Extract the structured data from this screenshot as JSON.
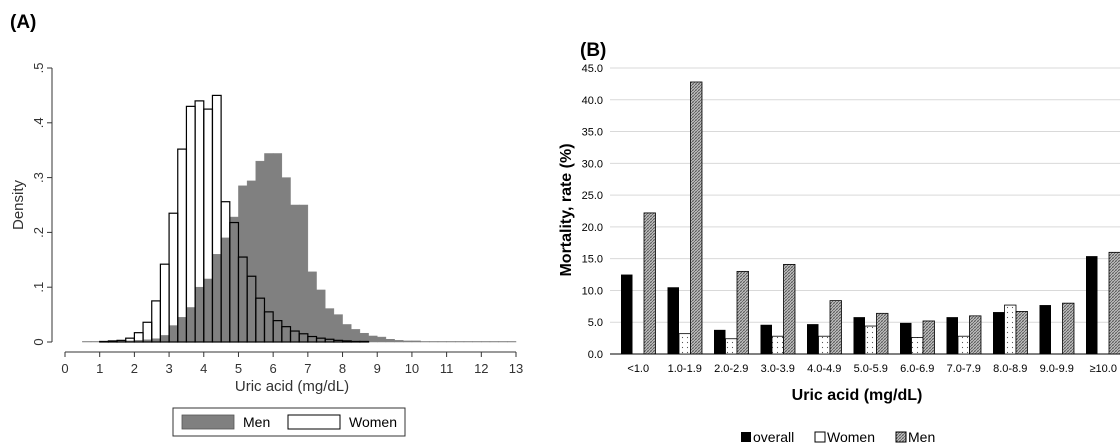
{
  "panelA": {
    "label": "(A)",
    "chart_data": {
      "type": "bar",
      "subtype": "overlaid-histogram",
      "xlabel": "Uric acid (mg/dL)",
      "ylabel": "Density",
      "xlim": [
        0,
        13
      ],
      "ylim": [
        0,
        0.5
      ],
      "xticks": [
        "0",
        "1",
        "2",
        "3",
        "4",
        "5",
        "6",
        "7",
        "8",
        "9",
        "10",
        "11",
        "12",
        "13"
      ],
      "yticks": [
        "0",
        ".1",
        ".2",
        ".3",
        ".4",
        ".5"
      ],
      "bin_width": 0.25,
      "legend": [
        "Men",
        "Women"
      ],
      "legend_position": "bottom",
      "colors": {
        "Men": "#808080",
        "Women": "#ffffff",
        "Women_edge": "#000000"
      },
      "series": [
        {
          "name": "Men",
          "x_start": [
            0.5,
            0.75,
            1.0,
            1.25,
            1.5,
            1.75,
            2.0,
            2.25,
            2.5,
            2.75,
            3.0,
            3.25,
            3.5,
            3.75,
            4.0,
            4.25,
            4.5,
            4.75,
            5.0,
            5.25,
            5.5,
            5.75,
            6.0,
            6.25,
            6.5,
            6.75,
            7.0,
            7.25,
            7.5,
            7.75,
            8.0,
            8.25,
            8.5,
            8.75,
            9.0,
            9.25,
            9.5,
            9.75,
            10.0,
            10.25,
            10.5,
            10.75,
            11.0,
            11.25,
            11.5,
            11.75,
            12.0,
            12.25,
            12.5,
            12.75
          ],
          "values": [
            0.001,
            0.001,
            0.001,
            0.001,
            0.002,
            0.002,
            0.003,
            0.004,
            0.006,
            0.012,
            0.03,
            0.045,
            0.063,
            0.1,
            0.115,
            0.16,
            0.19,
            0.228,
            0.285,
            0.294,
            0.33,
            0.344,
            0.344,
            0.3,
            0.25,
            0.25,
            0.128,
            0.095,
            0.061,
            0.05,
            0.032,
            0.023,
            0.016,
            0.011,
            0.009,
            0.005,
            0.003,
            0.002,
            0.002,
            0.001,
            0.001,
            0.001,
            0.001,
            0.001,
            0.001,
            0.001,
            0.001,
            0.001,
            0.001,
            0.001
          ]
        },
        {
          "name": "Women",
          "x_start": [
            1.0,
            1.25,
            1.5,
            1.75,
            2.0,
            2.25,
            2.5,
            2.75,
            3.0,
            3.25,
            3.5,
            3.75,
            4.0,
            4.25,
            4.5,
            4.75,
            5.0,
            5.25,
            5.5,
            5.75,
            6.0,
            6.25,
            6.5,
            6.75,
            7.0,
            7.25,
            7.5,
            7.75,
            8.0,
            8.25,
            8.5
          ],
          "values": [
            0.001,
            0.002,
            0.003,
            0.007,
            0.017,
            0.036,
            0.075,
            0.142,
            0.235,
            0.352,
            0.43,
            0.44,
            0.425,
            0.45,
            0.256,
            0.218,
            0.155,
            0.12,
            0.08,
            0.055,
            0.039,
            0.028,
            0.02,
            0.015,
            0.01,
            0.007,
            0.005,
            0.003,
            0.002,
            0.001,
            0.001
          ]
        }
      ]
    }
  },
  "panelB": {
    "label": "(B)",
    "chart_data": {
      "type": "bar",
      "subtype": "grouped",
      "xlabel": "Uric acid (mg/dL)",
      "ylabel": "Mortality, rate (%)",
      "ylim": [
        0,
        45
      ],
      "yticks": [
        "0.0",
        "5.0",
        "10.0",
        "15.0",
        "20.0",
        "25.0",
        "30.0",
        "35.0",
        "40.0",
        "45.0"
      ],
      "categories": [
        "<1.0",
        "1.0-1.9",
        "2.0-2.9",
        "3.0-3.9",
        "4.0-4.9",
        "5.0-5.9",
        "6.0-6.9",
        "7.0-7.9",
        "8.0-8.9",
        "9.0-9.9",
        "≥10.0"
      ],
      "legend": [
        "overall",
        "Women",
        "Men"
      ],
      "legend_position": "bottom",
      "colors": {
        "overall": "#000000",
        "Women": "#ffffff",
        "Men": "#a8a8a8"
      },
      "series": [
        {
          "name": "overall",
          "values": [
            12.5,
            10.5,
            3.8,
            4.6,
            4.7,
            5.8,
            4.9,
            5.8,
            6.6,
            7.7,
            15.4
          ]
        },
        {
          "name": "Women",
          "values": [
            null,
            3.2,
            2.4,
            2.8,
            2.8,
            4.4,
            2.6,
            2.8,
            7.7,
            null,
            null
          ]
        },
        {
          "name": "Men",
          "values": [
            22.2,
            42.8,
            13.0,
            14.1,
            8.4,
            6.4,
            5.2,
            6.0,
            6.7,
            8.0,
            16.0
          ]
        }
      ]
    }
  }
}
